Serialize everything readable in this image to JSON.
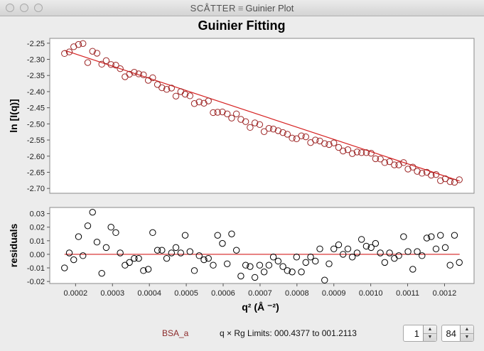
{
  "window": {
    "title_app": "SCÅTTER",
    "title_sep": "≡",
    "title_view": "Guinier Plot",
    "buttons": [
      "close-button",
      "minimize-button",
      "zoom-button"
    ]
  },
  "colors": {
    "fit_line": "#d62020",
    "data_marker_top": "#9c2424",
    "data_marker_bottom": "#000000",
    "dataset_label": "#8b2a2a"
  },
  "chart_data": [
    {
      "type": "scatter",
      "title": "Guinier Fitting",
      "ylabel": "ln [I(q)]",
      "xlim": [
        0.00013,
        0.00128
      ],
      "ylim": [
        -2.715,
        -2.235
      ],
      "yticks": [
        -2.25,
        -2.3,
        -2.35,
        -2.4,
        -2.45,
        -2.5,
        -2.55,
        -2.6,
        -2.65,
        -2.7
      ],
      "ytick_labels": [
        "-2.25",
        "-2.30",
        "-2.35",
        "-2.40",
        "-2.45",
        "-2.50",
        "-2.55",
        "-2.60",
        "-2.65",
        "-2.70"
      ],
      "grid": false,
      "fit_line": {
        "x": [
          0.00017,
          0.001241
        ],
        "y": [
          -2.272,
          -2.677
        ]
      },
      "x": [
        0.00017,
        0.000183,
        0.000195,
        0.000208,
        0.00022,
        0.000233,
        0.000246,
        0.000258,
        0.000271,
        0.000283,
        0.000296,
        0.000309,
        0.000321,
        0.000334,
        0.000346,
        0.000359,
        0.000371,
        0.000384,
        0.000397,
        0.000409,
        0.000422,
        0.000434,
        0.000447,
        0.00046,
        0.000472,
        0.000485,
        0.000497,
        0.00051,
        0.000522,
        0.000535,
        0.000548,
        0.00056,
        0.000573,
        0.000585,
        0.000598,
        0.000611,
        0.000623,
        0.000636,
        0.000648,
        0.000661,
        0.000673,
        0.000686,
        0.000699,
        0.000711,
        0.000724,
        0.000736,
        0.000749,
        0.000762,
        0.000774,
        0.000787,
        0.000799,
        0.000812,
        0.000824,
        0.000837,
        0.00085,
        0.000862,
        0.000875,
        0.000887,
        0.0009,
        0.000913,
        0.000925,
        0.000938,
        0.00095,
        0.000963,
        0.000975,
        0.000988,
        0.001001,
        0.001013,
        0.001026,
        0.001038,
        0.001051,
        0.001064,
        0.001076,
        0.001089,
        0.001101,
        0.001114,
        0.001126,
        0.001139,
        0.001152,
        0.001164,
        0.001177,
        0.001189,
        0.001202,
        0.001215,
        0.001227,
        0.00124
      ],
      "y": [
        -2.282,
        -2.277,
        -2.261,
        -2.254,
        -2.251,
        -2.31,
        -2.275,
        -2.281,
        -2.315,
        -2.304,
        -2.316,
        -2.318,
        -2.329,
        -2.354,
        -2.346,
        -2.34,
        -2.345,
        -2.348,
        -2.365,
        -2.357,
        -2.378,
        -2.388,
        -2.393,
        -2.389,
        -2.414,
        -2.4,
        -2.408,
        -2.413,
        -2.437,
        -2.432,
        -2.436,
        -2.429,
        -2.465,
        -2.464,
        -2.463,
        -2.469,
        -2.482,
        -2.469,
        -2.486,
        -2.493,
        -2.511,
        -2.497,
        -2.502,
        -2.524,
        -2.514,
        -2.516,
        -2.521,
        -2.527,
        -2.532,
        -2.544,
        -2.546,
        -2.537,
        -2.54,
        -2.558,
        -2.55,
        -2.553,
        -2.561,
        -2.564,
        -2.559,
        -2.573,
        -2.584,
        -2.58,
        -2.592,
        -2.587,
        -2.589,
        -2.589,
        -2.591,
        -2.608,
        -2.609,
        -2.62,
        -2.617,
        -2.627,
        -2.627,
        -2.62,
        -2.64,
        -2.634,
        -2.647,
        -2.653,
        -2.65,
        -2.659,
        -2.657,
        -2.676,
        -2.67,
        -2.679,
        -2.681,
        -2.673
      ]
    },
    {
      "type": "scatter",
      "ylabel": "residuals",
      "xlabel": "q² (Å ⁻²)",
      "xlim": [
        0.00013,
        0.00128
      ],
      "ylim": [
        -0.0215,
        0.0345
      ],
      "xticks": [
        0.0002,
        0.0003,
        0.0004,
        0.0005,
        0.0006,
        0.0007,
        0.0008,
        0.0009,
        0.001,
        0.0011,
        0.0012
      ],
      "xtick_labels": [
        "0.0002",
        "0.0003",
        "0.0004",
        "0.0005",
        "0.0006",
        "0.0007",
        "0.0008",
        "0.0009",
        "0.0010",
        "0.0011",
        "0.0012"
      ],
      "yticks": [
        0.03,
        0.02,
        0.01,
        0.0,
        -0.01,
        -0.02
      ],
      "ytick_labels": [
        "0.03",
        "0.02",
        "0.01",
        "0.00",
        "-0.01",
        "-0.02"
      ],
      "grid": false,
      "zero_line": 0,
      "x": [
        0.00017,
        0.000183,
        0.000195,
        0.000208,
        0.00022,
        0.000233,
        0.000246,
        0.000258,
        0.000271,
        0.000283,
        0.000296,
        0.000309,
        0.000321,
        0.000334,
        0.000346,
        0.000359,
        0.000371,
        0.000384,
        0.000397,
        0.000409,
        0.000422,
        0.000434,
        0.000447,
        0.00046,
        0.000472,
        0.000485,
        0.000497,
        0.00051,
        0.000522,
        0.000535,
        0.000548,
        0.00056,
        0.000573,
        0.000585,
        0.000598,
        0.000611,
        0.000623,
        0.000636,
        0.000648,
        0.000661,
        0.000673,
        0.000686,
        0.000699,
        0.000711,
        0.000724,
        0.000736,
        0.000749,
        0.000762,
        0.000774,
        0.000787,
        0.000799,
        0.000812,
        0.000824,
        0.000837,
        0.00085,
        0.000862,
        0.000875,
        0.000887,
        0.0009,
        0.000913,
        0.000925,
        0.000938,
        0.00095,
        0.000963,
        0.000975,
        0.000988,
        0.001001,
        0.001013,
        0.001026,
        0.001038,
        0.001051,
        0.001064,
        0.001076,
        0.001089,
        0.001101,
        0.001114,
        0.001126,
        0.001139,
        0.001152,
        0.001164,
        0.001177,
        0.001189,
        0.001202,
        0.001215,
        0.001227,
        0.00124
      ],
      "y": [
        -0.01,
        0.001,
        -0.004,
        0.013,
        -0.001,
        0.021,
        0.031,
        0.009,
        -0.014,
        0.005,
        0.02,
        0.016,
        0.001,
        -0.008,
        -0.006,
        -0.003,
        -0.003,
        -0.012,
        -0.011,
        0.016,
        0.003,
        0.003,
        -0.003,
        0.001,
        0.005,
        0.001,
        0.014,
        0.002,
        -0.012,
        -0.001,
        -0.004,
        -0.003,
        -0.008,
        0.014,
        0.008,
        -0.007,
        0.015,
        0.003,
        -0.016,
        -0.008,
        -0.009,
        -0.017,
        -0.008,
        -0.013,
        -0.008,
        -0.002,
        -0.005,
        -0.009,
        -0.012,
        -0.013,
        -0.002,
        -0.013,
        -0.006,
        -0.002,
        -0.005,
        0.004,
        -0.019,
        -0.007,
        0.004,
        0.007,
        0.0,
        0.004,
        -0.002,
        0.001,
        0.011,
        0.006,
        0.005,
        0.008,
        0.001,
        -0.006,
        0.001,
        -0.003,
        -0.001,
        0.013,
        0.002,
        -0.011,
        0.002,
        -0.001,
        0.012,
        0.013,
        0.004,
        0.014,
        0.005,
        -0.008,
        0.014,
        -0.006
      ]
    }
  ],
  "footer": {
    "dataset": "BSA_a",
    "limits_text": "q × Rg Limits: 000.4377 to 001.2113",
    "start_index": "1",
    "end_index": "84",
    "spin_up": "▲",
    "spin_down": "▼"
  }
}
